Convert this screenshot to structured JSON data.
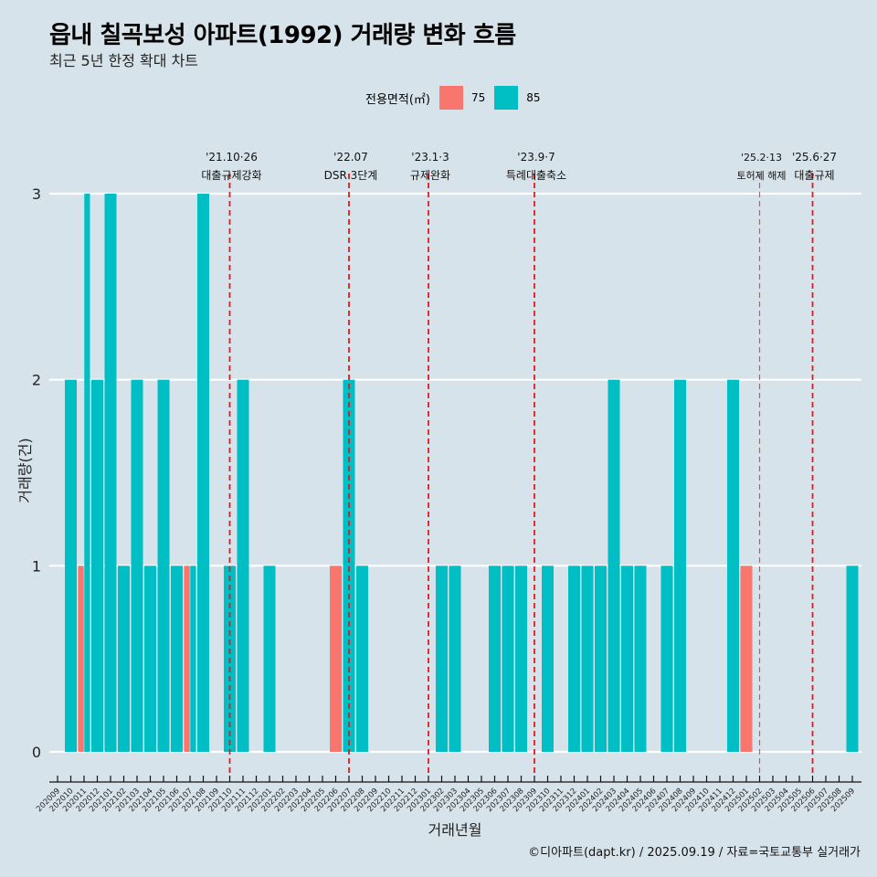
{
  "header": {
    "title": "읍내 칠곡보성 아파트(1992) 거래량 변화 흐름",
    "subtitle": "최근 5년 한정 확대 차트"
  },
  "legend": {
    "title": "전용면적(㎡)",
    "items": [
      {
        "label": "75",
        "color": "#F8766D"
      },
      {
        "label": "85",
        "color": "#00BFC4"
      }
    ]
  },
  "footer": "©디아파트(dapt.kr) / 2025.09.19 / 자료=국토교통부 실거래가",
  "chart_data": {
    "type": "bar",
    "title": "읍내 칠곡보성 아파트(1992) 거래량 변화 흐름",
    "subtitle": "최근 5년 한정 확대 차트",
    "xlabel": "거래년월",
    "ylabel": "거래량(건)",
    "ylim": [
      0,
      3
    ],
    "yticks": [
      0,
      1,
      2,
      3
    ],
    "grid": true,
    "legend_position": "top",
    "categories": [
      "202009",
      "202010",
      "202011",
      "202012",
      "202101",
      "202102",
      "202103",
      "202104",
      "202105",
      "202106",
      "202107",
      "202108",
      "202109",
      "202110",
      "202111",
      "202112",
      "202201",
      "202202",
      "202203",
      "202204",
      "202205",
      "202206",
      "202207",
      "202208",
      "202209",
      "202210",
      "202211",
      "202212",
      "202301",
      "202302",
      "202303",
      "202304",
      "202305",
      "202306",
      "202307",
      "202308",
      "202309",
      "202310",
      "202311",
      "202312",
      "202401",
      "202402",
      "202403",
      "202404",
      "202405",
      "202406",
      "202407",
      "202408",
      "202409",
      "202410",
      "202411",
      "202412",
      "202501",
      "202502",
      "202503",
      "202504",
      "202505",
      "202506",
      "202507",
      "202508",
      "202509"
    ],
    "series": [
      {
        "name": "75",
        "color": "#F8766D",
        "values": [
          0,
          0,
          1,
          0,
          0,
          0,
          0,
          0,
          0,
          0,
          1,
          0,
          0,
          0,
          0,
          0,
          0,
          0,
          0,
          0,
          0,
          1,
          0,
          0,
          0,
          0,
          0,
          0,
          0,
          0,
          0,
          0,
          0,
          0,
          0,
          0,
          0,
          0,
          0,
          0,
          0,
          0,
          0,
          0,
          0,
          0,
          0,
          0,
          0,
          0,
          0,
          0,
          1,
          0,
          0,
          0,
          0,
          0,
          0,
          0,
          0
        ]
      },
      {
        "name": "85",
        "color": "#00BFC4",
        "values": [
          0,
          2,
          3,
          2,
          3,
          1,
          2,
          1,
          2,
          1,
          1,
          3,
          0,
          1,
          2,
          0,
          1,
          0,
          0,
          0,
          0,
          0,
          2,
          1,
          0,
          0,
          0,
          0,
          0,
          1,
          1,
          0,
          0,
          1,
          1,
          1,
          0,
          1,
          0,
          1,
          1,
          1,
          2,
          1,
          1,
          0,
          1,
          2,
          0,
          0,
          0,
          2,
          0,
          0,
          0,
          0,
          0,
          0,
          0,
          0,
          1
        ]
      }
    ],
    "annotations": [
      {
        "month": "202110",
        "date": "'21.10·26",
        "label": "대출규제강화",
        "style": "strong"
      },
      {
        "month": "202207",
        "date": "'22.07",
        "label": "DSR 3단계",
        "style": "strong"
      },
      {
        "month": "202301",
        "date": "'23.1·3",
        "label": "규제완화",
        "style": "strong"
      },
      {
        "month": "202309",
        "date": "'23.9·7",
        "label": "특례대출축소",
        "style": "strong"
      },
      {
        "month": "202502",
        "date": "'25.2·13",
        "label": "토허제 해제",
        "style": "light"
      },
      {
        "month": "202506",
        "date": "'25.6·27",
        "label": "대출규제",
        "style": "strong"
      }
    ],
    "line_color": "#E41A1C"
  }
}
